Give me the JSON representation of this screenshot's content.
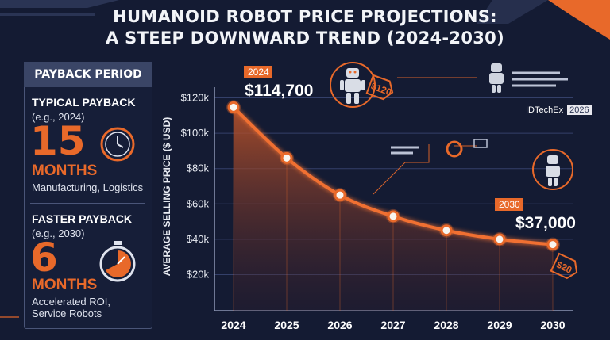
{
  "title_line1": "HUMANOID ROBOT PRICE PROJECTIONS:",
  "title_line2": "A STEEP DOWNWARD TREND (2024-2030)",
  "left_panel": {
    "header": "PAYBACK PERIOD",
    "typical": {
      "label": "TYPICAL PAYBACK",
      "sub": "(e.g., 2024)",
      "value": "15",
      "unit": "MONTHS",
      "desc": "Manufacturing, Logistics"
    },
    "faster": {
      "label": "FASTER PAYBACK",
      "sub": "(e.g., 2030)",
      "value": "6",
      "unit": "MONTHS",
      "desc1": "Accelerated ROI,",
      "desc2": "Service Robots"
    }
  },
  "callouts": {
    "start_year": "2024",
    "start_price": "$114,700",
    "start_tag": "$120",
    "end_year": "2030",
    "end_price": "$37,000",
    "end_tag": "$20"
  },
  "badge": {
    "brand": "IDTechEx",
    "year": "2026"
  },
  "colors": {
    "accent": "#e8692a",
    "background": "#141b33",
    "grid": "#3a4566"
  },
  "chart_data": {
    "type": "area",
    "title": "HUMANOID ROBOT PRICE PROJECTIONS: A STEEP DOWNWARD TREND (2024-2030)",
    "ylabel": "AVERAGE SELLING PRICE ($ USD)",
    "xlabel": "",
    "categories": [
      "2024",
      "2025",
      "2026",
      "2027",
      "2028",
      "2029",
      "2030"
    ],
    "values": [
      114700,
      86000,
      65000,
      53000,
      45000,
      40000,
      37000
    ],
    "y_ticks": [
      "$20k",
      "$40k",
      "$60k",
      "$80k",
      "$100k",
      "$120k"
    ],
    "ylim": [
      10000,
      120000
    ],
    "grid": true
  }
}
